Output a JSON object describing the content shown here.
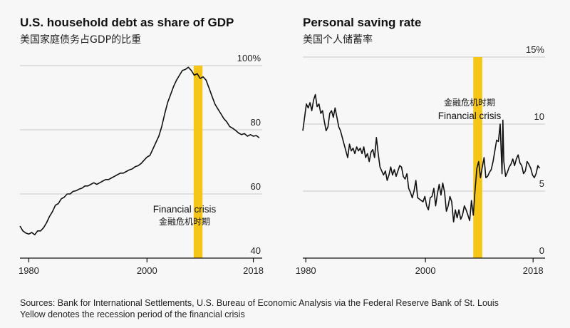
{
  "chart_data": [
    {
      "type": "line",
      "title": "U.S. household debt as share of GDP",
      "subtitle": "美国家庭债务占GDP的比重",
      "x_ticks": [
        "1980",
        "2000",
        "2018"
      ],
      "y_ticks": [
        "100%",
        "80",
        "60",
        "40"
      ],
      "ylim": [
        40,
        100
      ],
      "xlim": [
        1978.5,
        2019.5
      ],
      "grid": true,
      "highlight": {
        "from": 2007.9,
        "to": 2009.4,
        "label": "Financial crisis",
        "label_cn": "金融危机时期",
        "color": "#f5c518"
      },
      "series": [
        {
          "x": [
            1978.5,
            1979,
            1979.5,
            1980,
            1980.5,
            1981,
            1981.5,
            1982,
            1982.5,
            1983,
            1983.5,
            1984,
            1984.5,
            1985,
            1985.5,
            1986,
            1986.5,
            1987,
            1987.5,
            1988,
            1988.5,
            1989,
            1989.5,
            1990,
            1990.5,
            1991,
            1991.5,
            1992,
            1992.5,
            1993,
            1993.5,
            1994,
            1994.5,
            1995,
            1995.5,
            1996,
            1996.5,
            1997,
            1997.5,
            1998,
            1998.5,
            1999,
            1999.5,
            2000,
            2000.5,
            2001,
            2001.5,
            2002,
            2002.5,
            2003,
            2003.5,
            2004,
            2004.5,
            2005,
            2005.5,
            2006,
            2006.5,
            2007,
            2007.5,
            2008,
            2008.5,
            2009,
            2009.5,
            2010,
            2010.5,
            2011,
            2011.5,
            2012,
            2012.5,
            2013,
            2013.5,
            2014,
            2014.5,
            2015,
            2015.5,
            2016,
            2016.5,
            2017,
            2017.5,
            2018,
            2018.5,
            2019
          ],
          "values": [
            50.0,
            48.5,
            47.8,
            47.5,
            48.0,
            47.3,
            48.5,
            48.5,
            49.5,
            51.0,
            53.0,
            54.5,
            56.5,
            57.0,
            58.5,
            59.0,
            60.0,
            60.0,
            60.8,
            61.0,
            61.5,
            61.8,
            62.5,
            62.5,
            63.0,
            63.5,
            63.0,
            63.5,
            64.0,
            64.5,
            64.5,
            65.0,
            65.5,
            66.0,
            66.5,
            66.5,
            67.0,
            67.5,
            67.8,
            68.5,
            68.8,
            69.5,
            70.5,
            71.5,
            72.0,
            74.0,
            76.0,
            78.0,
            81.0,
            85.0,
            88.5,
            91.0,
            93.5,
            95.5,
            97.0,
            98.5,
            98.8,
            99.5,
            98.5,
            97.0,
            97.5,
            96.0,
            96.5,
            95.5,
            93.0,
            90.5,
            88.0,
            86.5,
            85.0,
            83.5,
            82.5,
            81.0,
            80.5,
            79.8,
            79.0,
            78.5,
            78.8,
            78.0,
            78.5,
            78.0,
            78.2,
            77.5
          ]
        }
      ]
    },
    {
      "type": "line",
      "title": "Personal saving rate",
      "subtitle": "美国个人储蓄率",
      "x_ticks": [
        "1980",
        "2000",
        "2018"
      ],
      "y_ticks": [
        "15%",
        "10",
        "5",
        "0"
      ],
      "ylim": [
        0,
        15
      ],
      "xlim": [
        1979.5,
        2020
      ],
      "grid": true,
      "highlight": {
        "from": 2008.0,
        "to": 2009.5,
        "label": "Financial crisis",
        "label_cn": "金融危机时期",
        "color": "#f5c518"
      },
      "series": [
        {
          "x": [
            1979.5,
            1979.8,
            1980.1,
            1980.4,
            1980.7,
            1981.0,
            1981.3,
            1981.6,
            1981.9,
            1982.2,
            1982.5,
            1982.8,
            1983.1,
            1983.4,
            1983.7,
            1984.0,
            1984.3,
            1984.6,
            1984.9,
            1985.2,
            1985.5,
            1985.8,
            1986.1,
            1986.4,
            1986.7,
            1987.0,
            1987.3,
            1987.6,
            1987.9,
            1988.2,
            1988.5,
            1988.8,
            1989.1,
            1989.4,
            1989.7,
            1990.0,
            1990.3,
            1990.6,
            1990.9,
            1991.2,
            1991.5,
            1991.8,
            1992.1,
            1992.4,
            1992.7,
            1993.0,
            1993.3,
            1993.6,
            1993.9,
            1994.2,
            1994.5,
            1994.8,
            1995.1,
            1995.4,
            1995.7,
            1996.0,
            1996.3,
            1996.6,
            1996.9,
            1997.2,
            1997.5,
            1997.8,
            1998.1,
            1998.4,
            1998.7,
            1999.0,
            1999.3,
            1999.6,
            1999.9,
            2000.2,
            2000.5,
            2000.8,
            2001.1,
            2001.4,
            2001.7,
            2002.0,
            2002.3,
            2002.6,
            2002.9,
            2003.2,
            2003.5,
            2003.8,
            2004.1,
            2004.4,
            2004.7,
            2005.0,
            2005.3,
            2005.6,
            2005.9,
            2006.2,
            2006.5,
            2006.8,
            2007.1,
            2007.4,
            2007.7,
            2008.0,
            2008.3,
            2008.6,
            2008.9,
            2009.2,
            2009.5,
            2009.8,
            2010.1,
            2010.4,
            2010.7,
            2011.0,
            2011.3,
            2011.6,
            2011.9,
            2012.2,
            2012.5,
            2012.8,
            2012.95,
            2013.1,
            2013.4,
            2013.7,
            2014.0,
            2014.3,
            2014.6,
            2014.9,
            2015.2,
            2015.5,
            2015.8,
            2016.1,
            2016.4,
            2016.7,
            2017.0,
            2017.3,
            2017.6,
            2017.9,
            2018.2,
            2018.5,
            2018.8,
            2019.1
          ],
          "values": [
            9.5,
            10.5,
            11.5,
            11.2,
            11.6,
            11.0,
            11.8,
            12.2,
            11.3,
            11.5,
            10.8,
            11.0,
            10.2,
            9.5,
            9.8,
            10.8,
            11.0,
            10.5,
            11.2,
            10.5,
            9.8,
            9.5,
            9.0,
            8.5,
            8.0,
            7.5,
            8.5,
            8.0,
            8.2,
            7.8,
            8.3,
            8.0,
            8.2,
            7.8,
            8.3,
            7.5,
            7.8,
            7.2,
            7.9,
            8.1,
            7.5,
            9.0,
            7.8,
            6.8,
            6.5,
            6.2,
            6.5,
            5.8,
            6.2,
            6.8,
            6.2,
            6.6,
            6.1,
            6.5,
            6.9,
            6.8,
            6.1,
            5.9,
            6.3,
            5.2,
            4.9,
            4.5,
            5.0,
            5.8,
            4.5,
            4.4,
            4.3,
            4.2,
            4.6,
            3.9,
            3.6,
            4.5,
            4.6,
            5.2,
            3.9,
            4.8,
            5.5,
            4.7,
            5.6,
            4.9,
            3.5,
            3.9,
            4.6,
            4.2,
            2.7,
            3.6,
            3.0,
            3.6,
            2.9,
            3.2,
            3.9,
            3.6,
            3.2,
            2.8,
            4.3,
            3.2,
            5.1,
            6.7,
            7.2,
            6.0,
            6.8,
            7.5,
            6.0,
            6.1,
            6.4,
            6.6,
            7.2,
            8.0,
            8.8,
            8.7,
            10.0,
            6.3,
            10.3,
            7.2,
            6.1,
            6.4,
            6.8,
            7.0,
            7.4,
            6.9,
            7.4,
            7.7,
            7.1,
            6.9,
            6.3,
            6.5,
            7.2,
            7.0,
            6.7,
            6.2,
            6.0,
            6.3,
            6.9,
            6.7
          ]
        }
      ]
    }
  ],
  "footer": {
    "sources": "Sources: Bank for International Settlements, U.S. Bureau of Economic Analysis via the Federal Reserve Bank of St. Louis",
    "note": "Yellow denotes the recession period of the financial crisis"
  }
}
